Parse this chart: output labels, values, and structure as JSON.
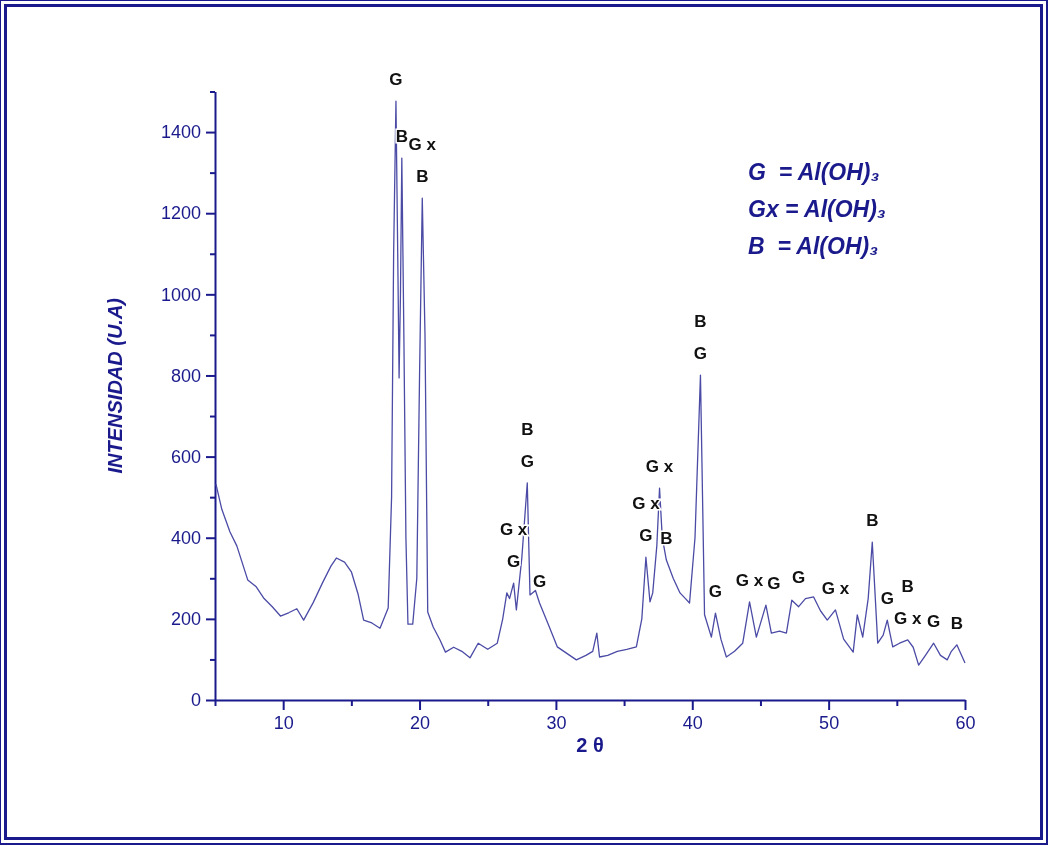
{
  "chart_data": {
    "type": "line",
    "xlabel": "2 θ",
    "ylabel": "INTENSIDAD (U.A)",
    "xlim": [
      5,
      60
    ],
    "ylim": [
      0,
      1500
    ],
    "xticks": [
      {
        "value": 5,
        "label": null
      },
      10,
      {
        "value": 15,
        "label": null
      },
      20,
      {
        "value": 25,
        "label": null
      },
      30,
      {
        "value": 35,
        "label": null
      },
      40,
      {
        "value": 45,
        "label": null
      },
      50,
      {
        "value": 55,
        "label": null
      },
      60
    ],
    "yticks": [
      0,
      {
        "value": 100,
        "label": null
      },
      200,
      {
        "value": 300,
        "label": null
      },
      400,
      {
        "value": 500,
        "label": null
      },
      600,
      {
        "value": 700,
        "label": null
      },
      800,
      {
        "value": 900,
        "label": null
      },
      1000,
      {
        "value": 1100,
        "label": null
      },
      1200,
      {
        "value": 1300,
        "label": null
      },
      1400,
      {
        "value": 1500,
        "label": null
      }
    ],
    "grid": false,
    "marker": "none",
    "line_style": "solid",
    "series": [
      {
        "color": "#4b4ba6",
        "x": [
          5.07,
          5.5,
          6.1,
          6.6,
          7.4,
          8.0,
          8.6,
          9.2,
          9.8,
          10.4,
          11.0,
          11.5,
          12.2,
          12.9,
          13.5,
          13.9,
          14.5,
          15.0,
          15.5,
          15.9,
          16.5,
          17.1,
          17.7,
          17.95,
          18.1,
          18.27,
          18.4,
          18.5,
          18.6,
          18.7,
          18.85,
          19.0,
          19.15,
          19.5,
          19.8,
          20.0,
          20.2,
          20.4,
          20.6,
          21.0,
          21.5,
          21.9,
          22.5,
          23.1,
          23.7,
          24.3,
          25.0,
          25.7,
          26.1,
          26.4,
          26.6,
          26.9,
          27.1,
          27.5,
          27.9,
          28.1,
          28.5,
          28.8,
          29.4,
          30.1,
          30.8,
          31.5,
          32.2,
          32.7,
          33.0,
          33.2,
          33.8,
          34.5,
          35.2,
          35.9,
          36.3,
          36.6,
          36.9,
          37.1,
          37.4,
          37.6,
          37.8,
          38.1,
          38.6,
          39.1,
          39.5,
          39.8,
          40.2,
          40.6,
          40.9,
          41.4,
          41.7,
          42.1,
          42.5,
          43.1,
          43.7,
          44.2,
          44.7,
          45.1,
          45.4,
          45.8,
          46.4,
          46.9,
          47.3,
          47.8,
          48.3,
          48.9,
          49.4,
          49.9,
          50.5,
          51.1,
          51.8,
          52.1,
          52.5,
          52.9,
          53.2,
          53.6,
          54.0,
          54.3,
          54.7,
          55.2,
          55.8,
          56.2,
          56.6,
          57.1,
          57.7,
          58.2,
          58.7,
          59.0,
          59.4,
          60.0
        ],
        "values": [
          532,
          470,
          414,
          380,
          296,
          280,
          250,
          230,
          207,
          215,
          225,
          197,
          240,
          290,
          330,
          350,
          340,
          316,
          260,
          197,
          190,
          177,
          227,
          500,
          1100,
          1476,
          1100,
          794,
          1000,
          1336,
          900,
          400,
          187,
          187,
          300,
          800,
          1237,
          900,
          217,
          180,
          148,
          118,
          130,
          120,
          104,
          140,
          125,
          140,
          200,
          264,
          250,
          288,
          222,
          350,
          535,
          259,
          270,
          239,
          190,
          131,
          115,
          99,
          110,
          120,
          165,
          106,
          110,
          120,
          125,
          131,
          200,
          352,
          242,
          264,
          380,
          522,
          400,
          345,
          300,
          264,
          250,
          239,
          400,
          801,
          210,
          155,
          214,
          150,
          106,
          120,
          140,
          242,
          155,
          200,
          234,
          165,
          170,
          165,
          246,
          230,
          250,
          254,
          220,
          197,
          222,
          150,
          118,
          210,
          155,
          250,
          389,
          140,
          160,
          197,
          131,
          140,
          148,
          130,
          86,
          110,
          140,
          110,
          99,
          120,
          136,
          91
        ]
      }
    ],
    "annotations": [
      {
        "text": "G",
        "x": 18.27,
        "y": 1476
      },
      {
        "text": "B",
        "x": 18.7,
        "y": 1336
      },
      {
        "text": "B",
        "x": 20.2,
        "y": 1237
      },
      {
        "text": "G x",
        "x": 20.2,
        "y": 1237
      },
      {
        "text": "G",
        "x": 27.9,
        "y": 535
      },
      {
        "text": "B",
        "x": 27.9,
        "y": 535
      },
      {
        "text": "G",
        "x": 26.9,
        "y": 288
      },
      {
        "text": "G x",
        "x": 26.9,
        "y": 288
      },
      {
        "text": "G",
        "x": 28.8,
        "y": 239
      },
      {
        "text": "G",
        "x": 36.6,
        "y": 352
      },
      {
        "text": "G x",
        "x": 36.6,
        "y": 352
      },
      {
        "text": "G x",
        "x": 37.6,
        "y": 522
      },
      {
        "text": "B",
        "x": 38.1,
        "y": 345
      },
      {
        "text": "G",
        "x": 40.6,
        "y": 801
      },
      {
        "text": "B",
        "x": 40.6,
        "y": 801
      },
      {
        "text": "G",
        "x": 41.7,
        "y": 214
      },
      {
        "text": "G x",
        "x": 44.2,
        "y": 242
      },
      {
        "text": "G",
        "x": 45.4,
        "y": 234
      },
      {
        "text": "G",
        "x": 47.8,
        "y": 250
      },
      {
        "text": "G x",
        "x": 50.5,
        "y": 222
      },
      {
        "text": "B",
        "x": 53.2,
        "y": 389
      },
      {
        "text": "G",
        "x": 54.3,
        "y": 197
      },
      {
        "text": "G x",
        "x": 55.8,
        "y": 148
      },
      {
        "text": "B",
        "x": 55.8,
        "y": 148
      },
      {
        "text": "G",
        "x": 57.7,
        "y": 140
      },
      {
        "text": "B",
        "x": 59.4,
        "y": 136
      },
      "G  = Al(OH)₃",
      "Gx = Al(OH)₃",
      "B  = Al(OH)₃"
    ]
  }
}
